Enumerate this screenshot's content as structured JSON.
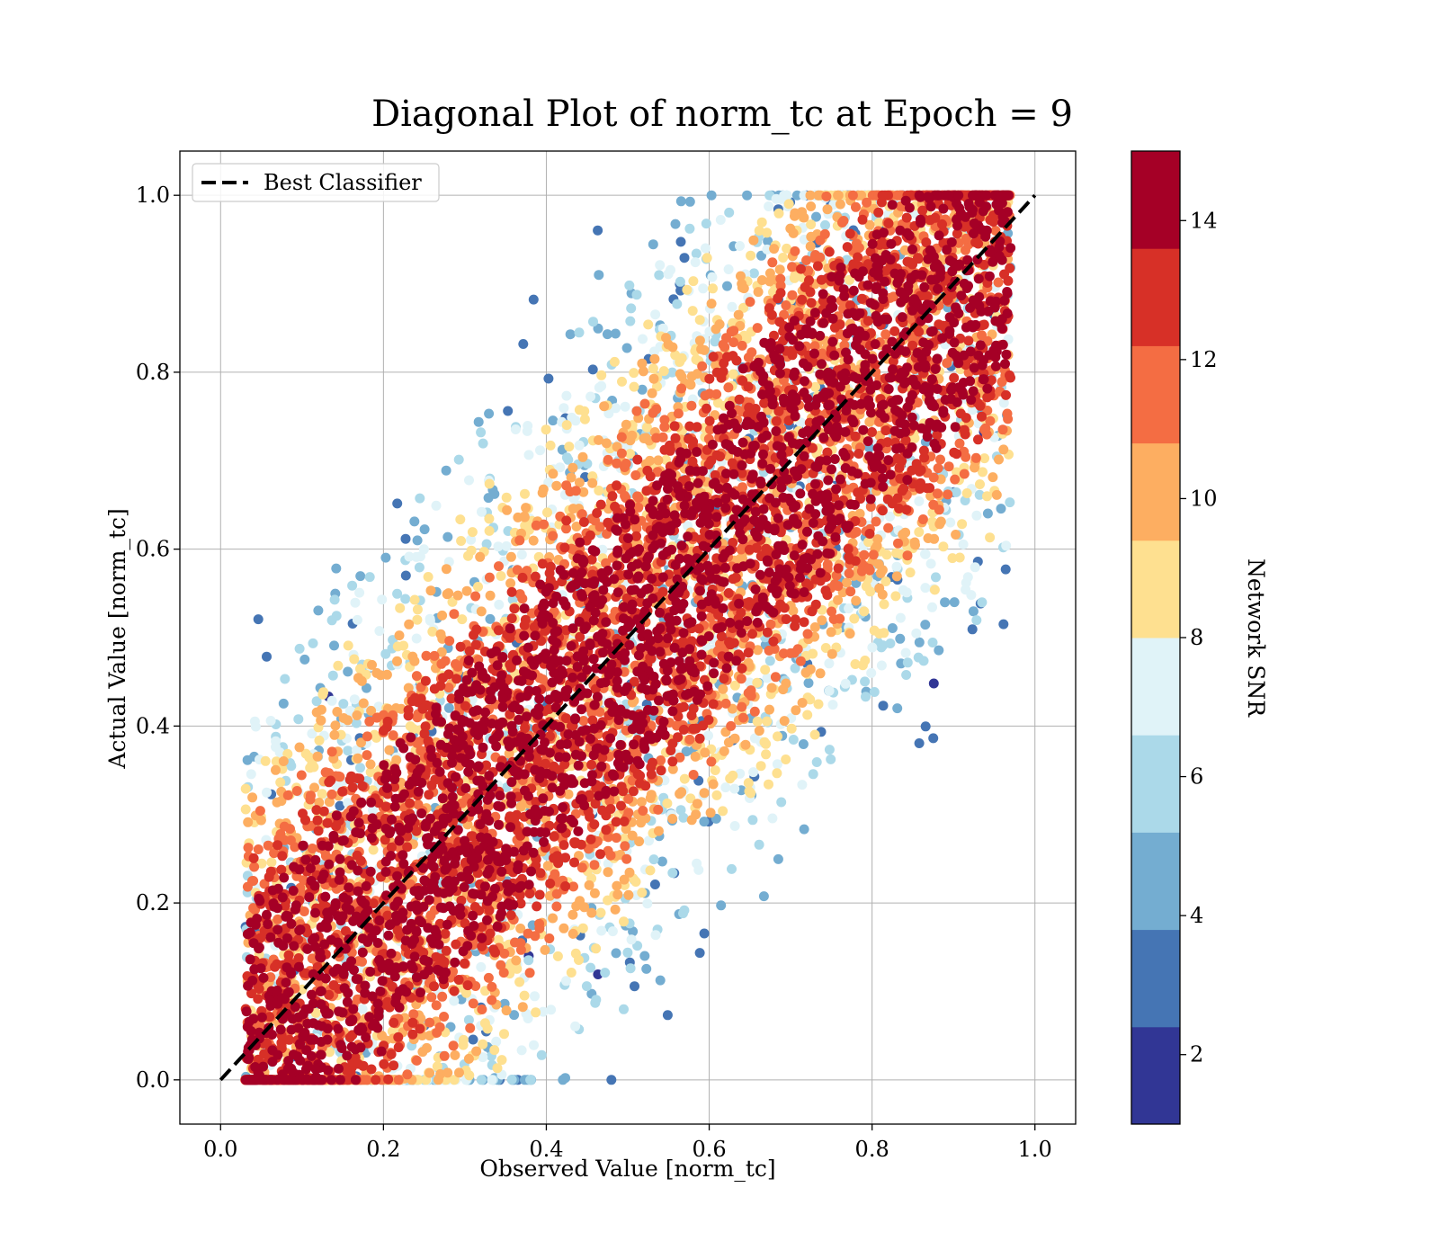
{
  "chart_data": {
    "type": "scatter",
    "title": "Diagonal Plot of norm_tc at Epoch = 9",
    "xlabel": "Observed Value [norm_tc]",
    "ylabel": "Actual Value [norm_tc]",
    "xlim": [
      -0.05,
      1.05
    ],
    "ylim": [
      -0.05,
      1.05
    ],
    "xticks": [
      0.0,
      0.2,
      0.4,
      0.6,
      0.8,
      1.0
    ],
    "yticks": [
      0.0,
      0.2,
      0.4,
      0.6,
      0.8,
      1.0
    ],
    "xtick_labels": [
      "0.0",
      "0.2",
      "0.4",
      "0.6",
      "0.8",
      "1.0"
    ],
    "ytick_labels": [
      "0.0",
      "0.2",
      "0.4",
      "0.6",
      "0.8",
      "1.0"
    ],
    "grid": true,
    "legend": {
      "placement": "upper-left",
      "entries": [
        "Best Classifier"
      ]
    },
    "reference_line": {
      "x": [
        0.0,
        1.0
      ],
      "y": [
        0.0,
        1.0
      ],
      "style": "dashed",
      "color": "#000000"
    },
    "colorbar": {
      "label": "Network SNR",
      "range": [
        1,
        15
      ],
      "ticks": [
        2,
        4,
        6,
        8,
        10,
        12,
        14
      ],
      "tick_labels": [
        "2",
        "4",
        "6",
        "8",
        "10",
        "12",
        "14"
      ],
      "bands": [
        {
          "from": 1,
          "to": 2.4,
          "color": "#313695"
        },
        {
          "from": 2.4,
          "to": 3.8,
          "color": "#4575b4"
        },
        {
          "from": 3.8,
          "to": 5.2,
          "color": "#74add1"
        },
        {
          "from": 5.2,
          "to": 6.6,
          "color": "#abd9e9"
        },
        {
          "from": 6.6,
          "to": 8.0,
          "color": "#e0f3f8"
        },
        {
          "from": 8.0,
          "to": 9.4,
          "color": "#fee090"
        },
        {
          "from": 9.4,
          "to": 10.8,
          "color": "#fdae61"
        },
        {
          "from": 10.8,
          "to": 12.2,
          "color": "#f46d43"
        },
        {
          "from": 12.2,
          "to": 13.6,
          "color": "#d73027"
        },
        {
          "from": 13.6,
          "to": 15,
          "color": "#a50026"
        }
      ]
    },
    "scatter_model": {
      "count": 9000,
      "observed_range": [
        0.03,
        0.97
      ],
      "snr_range": [
        1.5,
        15
      ],
      "spread_at_low_snr": 0.55,
      "spread_at_high_snr": 0.13
    }
  }
}
